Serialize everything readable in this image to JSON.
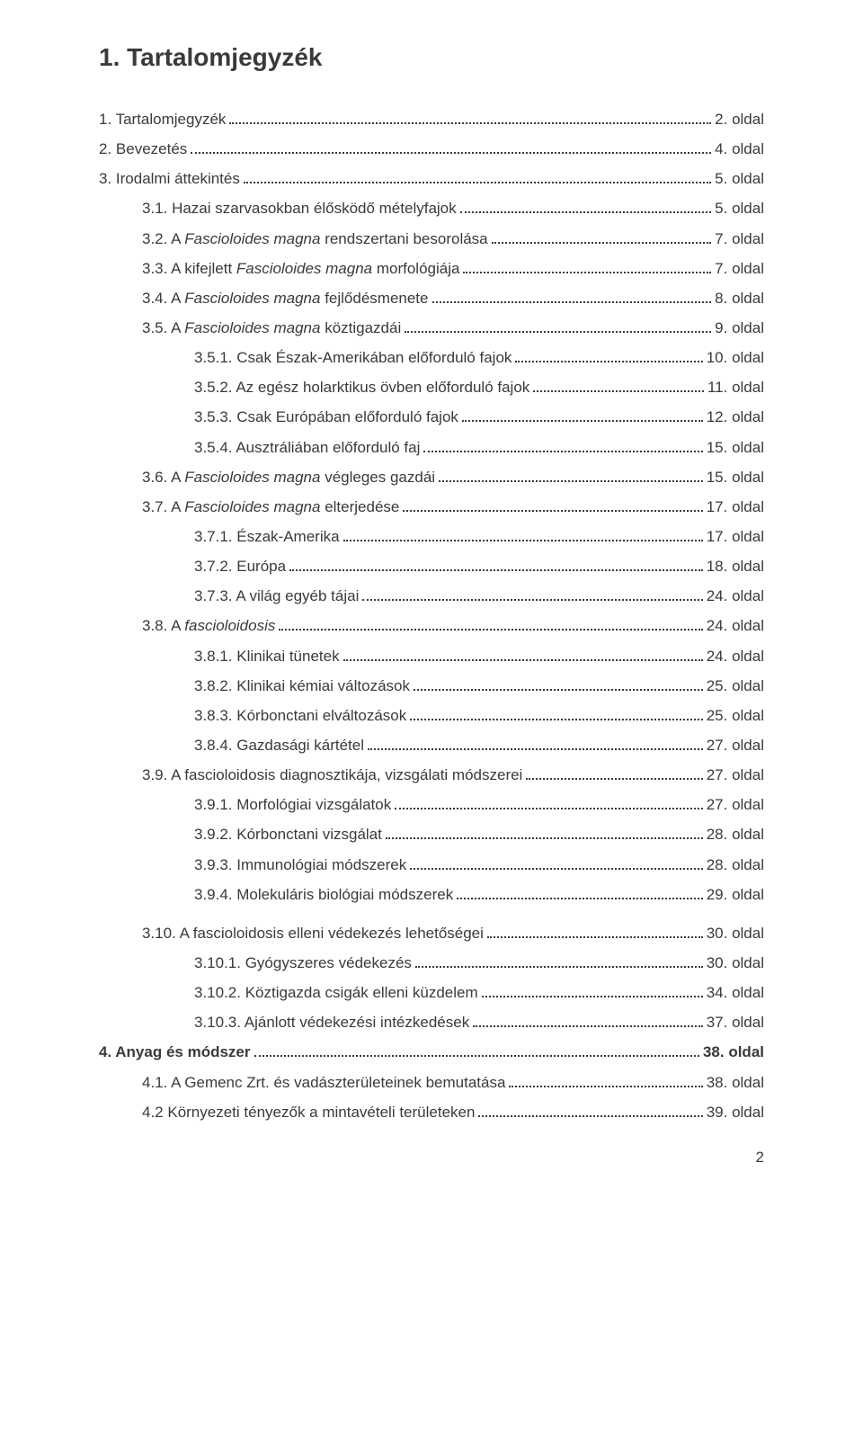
{
  "title": "1. Tartalomjegyzék",
  "pageNumber": "2",
  "colors": {
    "text": "#3a3a3a",
    "background": "#ffffff"
  },
  "typography": {
    "body_font_size": 17,
    "title_font_size": 28,
    "line_height": 1.95
  },
  "entries": [
    {
      "indent": 0,
      "bold": false,
      "label_plain": "1. Tartalomjegyzék",
      "label_italic": "",
      "page": "2. oldal"
    },
    {
      "indent": 0,
      "bold": false,
      "label_plain": "2. Bevezetés",
      "label_italic": "",
      "page": "4. oldal"
    },
    {
      "indent": 0,
      "bold": false,
      "label_plain": "3. Irodalmi áttekintés",
      "label_italic": "",
      "page": "5. oldal"
    },
    {
      "indent": 1,
      "bold": false,
      "label_plain": "3.1. Hazai szarvasokban élősködő mételyfajok",
      "label_italic": "",
      "page": "5. oldal"
    },
    {
      "indent": 1,
      "bold": false,
      "label_plain": "3.2. A ",
      "label_italic": "Fascioloides magna",
      "label_plain2": " rendszertani besorolása",
      "page": "7. oldal"
    },
    {
      "indent": 1,
      "bold": false,
      "label_plain": "3.3. A kifejlett ",
      "label_italic": "Fascioloides magna",
      "label_plain2": " morfológiája",
      "page": "7. oldal"
    },
    {
      "indent": 1,
      "bold": false,
      "label_plain": "3.4. A ",
      "label_italic": "Fascioloides magna",
      "label_plain2": " fejlődésmenete",
      "page": "8. oldal"
    },
    {
      "indent": 1,
      "bold": false,
      "label_plain": "3.5. A ",
      "label_italic": "Fascioloides magna",
      "label_plain2": " köztigazdái",
      "page": "9. oldal"
    },
    {
      "indent": 2,
      "bold": false,
      "label_plain": "3.5.1. Csak Észak-Amerikában előforduló fajok",
      "label_italic": "",
      "page": "10. oldal"
    },
    {
      "indent": 2,
      "bold": false,
      "label_plain": "3.5.2. Az egész holarktikus övben előforduló fajok",
      "label_italic": "",
      "page": "11. oldal"
    },
    {
      "indent": 2,
      "bold": false,
      "label_plain": "3.5.3. Csak Európában előforduló fajok",
      "label_italic": "",
      "page": "12. oldal"
    },
    {
      "indent": 2,
      "bold": false,
      "label_plain": "3.5.4. Ausztráliában előforduló faj",
      "label_italic": "",
      "page": "15. oldal"
    },
    {
      "indent": 1,
      "bold": false,
      "label_plain": "3.6. A ",
      "label_italic": "Fascioloides magna",
      "label_plain2": " végleges gazdái",
      "page": "15. oldal"
    },
    {
      "indent": 1,
      "bold": false,
      "label_plain": "3.7. A ",
      "label_italic": "Fascioloides magna",
      "label_plain2": " elterjedése",
      "page": "17. oldal"
    },
    {
      "indent": 2,
      "bold": false,
      "label_plain": "3.7.1. Észak-Amerika",
      "label_italic": "",
      "page": "17. oldal"
    },
    {
      "indent": 2,
      "bold": false,
      "label_plain": "3.7.2. Európa",
      "label_italic": "",
      "page": "18. oldal"
    },
    {
      "indent": 2,
      "bold": false,
      "label_plain": "3.7.3. A világ egyéb tájai",
      "label_italic": "",
      "page": "24. oldal"
    },
    {
      "indent": 1,
      "bold": false,
      "label_plain": "3.8. A ",
      "label_italic": "fascioloidosis",
      "label_plain2": "",
      "page": "24. oldal"
    },
    {
      "indent": 2,
      "bold": false,
      "label_plain": "3.8.1. Klinikai tünetek",
      "label_italic": "",
      "page": "24. oldal"
    },
    {
      "indent": 2,
      "bold": false,
      "label_plain": "3.8.2. Klinikai kémiai változások",
      "label_italic": "",
      "page": "25. oldal"
    },
    {
      "indent": 2,
      "bold": false,
      "label_plain": "3.8.3. Kórbonctani elváltozások",
      "label_italic": "",
      "page": "25. oldal"
    },
    {
      "indent": 2,
      "bold": false,
      "label_plain": "3.8.4. Gazdasági kártétel",
      "label_italic": "",
      "page": "27. oldal"
    },
    {
      "indent": 1,
      "bold": false,
      "label_plain": "3.9. A fascioloidosis diagnosztikája, vizsgálati módszerei",
      "label_italic": "",
      "page": "27. oldal"
    },
    {
      "indent": 2,
      "bold": false,
      "label_plain": "3.9.1. Morfológiai vizsgálatok",
      "label_italic": "",
      "page": "27. oldal"
    },
    {
      "indent": 2,
      "bold": false,
      "label_plain": "3.9.2. Kórbonctani vizsgálat",
      "label_italic": "",
      "page": "28. oldal"
    },
    {
      "indent": 2,
      "bold": false,
      "label_plain": "3.9.3. Immunológiai módszerek",
      "label_italic": "",
      "page": "28. oldal"
    },
    {
      "indent": 2,
      "bold": false,
      "label_plain": "3.9.4. Molekuláris biológiai módszerek",
      "label_italic": "",
      "page": "29. oldal"
    },
    {
      "gap": true
    },
    {
      "indent": 1,
      "bold": false,
      "label_plain": "3.10. A fascioloidosis elleni védekezés lehetőségei",
      "label_italic": "",
      "page": "30. oldal"
    },
    {
      "indent": 2,
      "bold": false,
      "label_plain": "3.10.1. Gyógyszeres védekezés",
      "label_italic": "",
      "page": "30. oldal"
    },
    {
      "indent": 2,
      "bold": false,
      "label_plain": "3.10.2. Köztigazda csigák elleni küzdelem",
      "label_italic": "",
      "page": "34. oldal"
    },
    {
      "indent": 2,
      "bold": false,
      "label_plain": "3.10.3. Ajánlott védekezési intézkedések",
      "label_italic": "",
      "page": "37. oldal"
    },
    {
      "indent": 0,
      "bold": true,
      "label_plain": "4. Anyag és módszer",
      "label_italic": "",
      "page": "38. oldal"
    },
    {
      "indent": 1,
      "bold": false,
      "label_plain": "4.1. A Gemenc Zrt. és vadászterületeinek bemutatása",
      "label_italic": "",
      "page": "38. oldal"
    },
    {
      "indent": 1,
      "bold": false,
      "label_plain": "4.2 Környezeti tényezők a mintavételi területeken",
      "label_italic": "",
      "page": "39. oldal"
    }
  ]
}
